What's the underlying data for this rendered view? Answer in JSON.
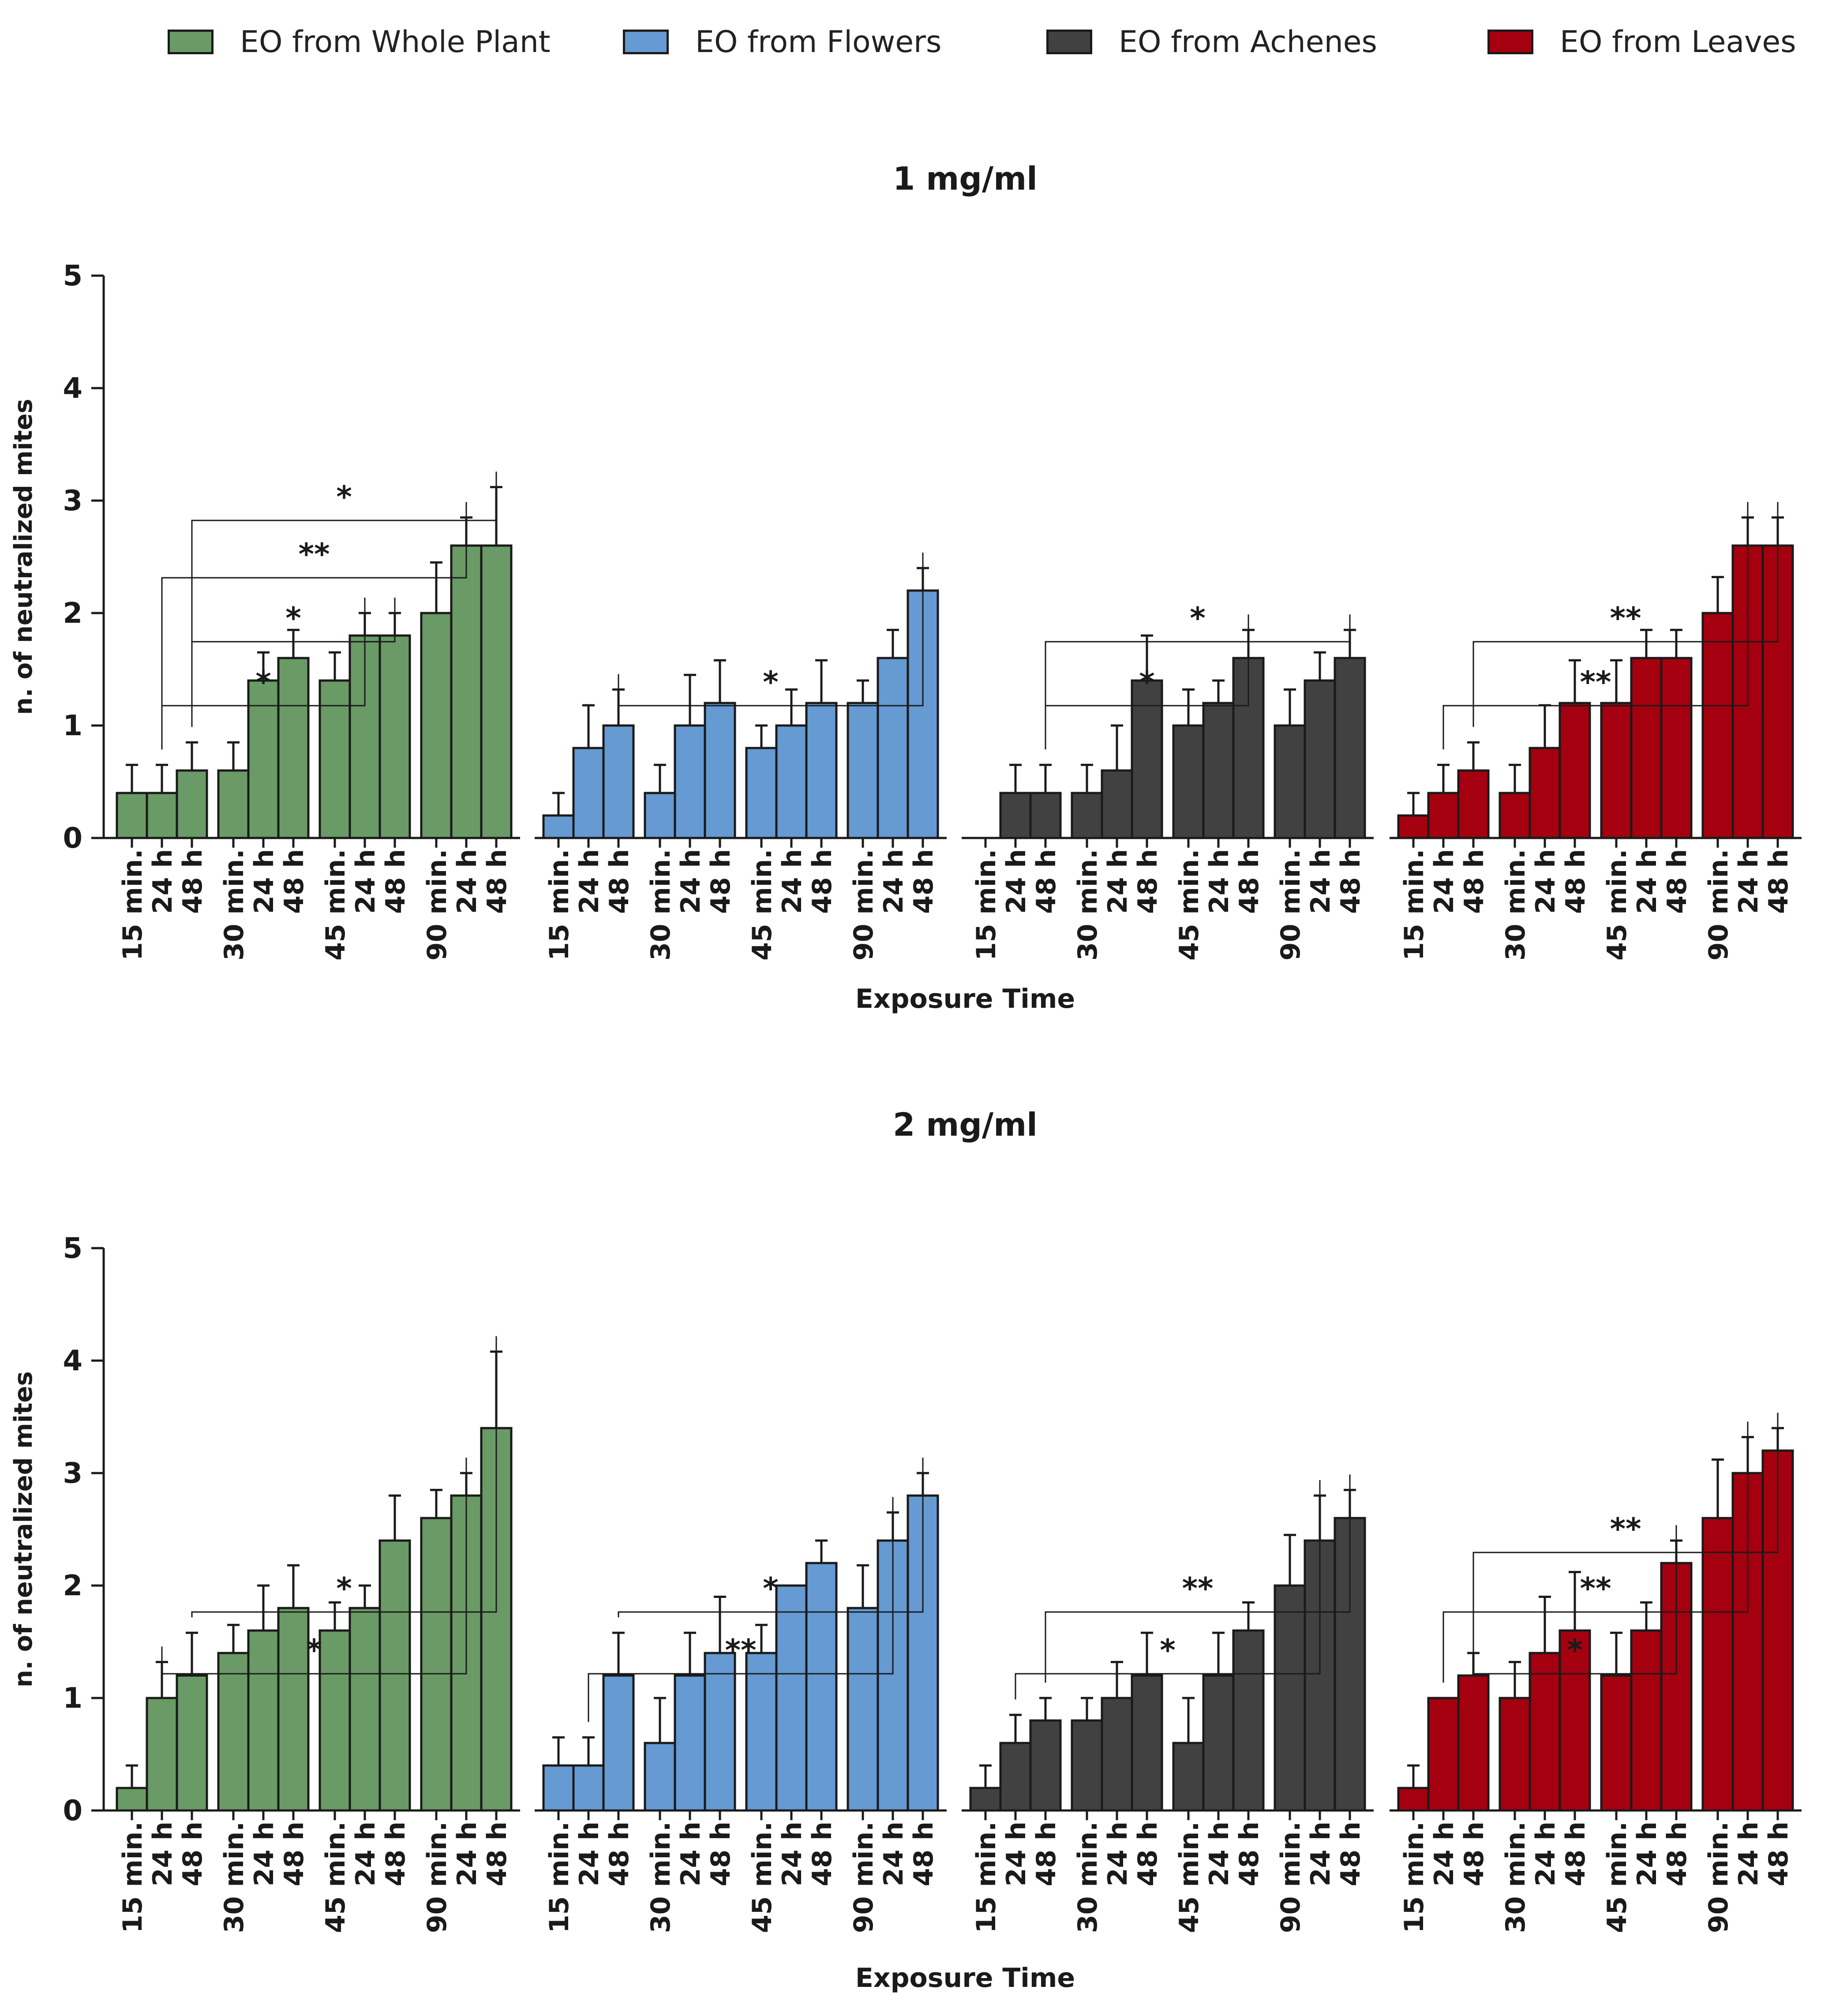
{
  "legend": [
    {
      "label": "EO from Whole Plant",
      "color": "#6a9a65"
    },
    {
      "label": "EO from Flowers",
      "color": "#659ad2"
    },
    {
      "label": "EO from Achenes",
      "color": "#414141"
    },
    {
      "label": "EO from Leaves",
      "color": "#a4000f"
    }
  ],
  "chart_data": [
    {
      "type": "bar",
      "title": "1 mg/ml",
      "xlabel": "Exposure Time",
      "ylabel": "n. of neutralized mites",
      "ylim": [
        0,
        5
      ],
      "yticks": [
        0,
        1,
        2,
        3,
        4,
        5
      ],
      "bar_labels": [
        "15 min.",
        "24 h",
        "48 h",
        "30 min.",
        "24 h",
        "48 h",
        "45 min.",
        "24 h",
        "48 h",
        "90 min.",
        "24 h",
        "48 h"
      ],
      "series": [
        {
          "name": "EO from Whole Plant",
          "values": [
            0.4,
            0.4,
            0.6,
            0.6,
            1.4,
            1.6,
            1.4,
            1.8,
            1.8,
            2.0,
            2.6,
            2.6
          ],
          "errors": [
            0.25,
            0.25,
            0.25,
            0.25,
            0.25,
            0.25,
            0.25,
            0.2,
            0.2,
            0.45,
            0.25,
            0.52
          ]
        },
        {
          "name": "EO from Flowers",
          "values": [
            0.2,
            0.8,
            1.0,
            0.4,
            1.0,
            1.2,
            0.8,
            1.0,
            1.2,
            1.2,
            1.6,
            2.2
          ],
          "errors": [
            0.2,
            0.38,
            0.32,
            0.25,
            0.45,
            0.38,
            0.2,
            0.32,
            0.38,
            0.2,
            0.25,
            0.2
          ]
        },
        {
          "name": "EO from Achenes",
          "values": [
            0.0,
            0.4,
            0.4,
            0.4,
            0.6,
            1.4,
            1.0,
            1.2,
            1.6,
            1.0,
            1.4,
            1.6
          ],
          "errors": [
            0,
            0.25,
            0.25,
            0.25,
            0.4,
            0.4,
            0.32,
            0.2,
            0.25,
            0.32,
            0.25,
            0.25
          ]
        },
        {
          "name": "EO from Leaves",
          "values": [
            0.2,
            0.4,
            0.6,
            0.4,
            0.8,
            1.2,
            1.2,
            1.6,
            1.6,
            2.0,
            2.6,
            2.6
          ],
          "errors": [
            0.2,
            0.25,
            0.25,
            0.25,
            0.38,
            0.38,
            0.38,
            0.25,
            0.25,
            0.32,
            0.25,
            0.25
          ]
        }
      ],
      "significance": [
        {
          "group": 0,
          "from": 1,
          "to": 7,
          "label": "*"
        },
        {
          "group": 0,
          "from": 2,
          "to": 8,
          "label": "*"
        },
        {
          "group": 0,
          "from": 1,
          "to": 10,
          "label": "**"
        },
        {
          "group": 0,
          "from": 2,
          "to": 11,
          "label": "*"
        },
        {
          "group": 1,
          "from": 2,
          "to": 11,
          "label": "*"
        },
        {
          "group": 2,
          "from": 2,
          "to": 8,
          "label": "*"
        },
        {
          "group": 2,
          "from": 2,
          "to": 11,
          "label": "*"
        },
        {
          "group": 3,
          "from": 1,
          "to": 10,
          "label": "**"
        },
        {
          "group": 3,
          "from": 2,
          "to": 11,
          "label": "**"
        }
      ]
    },
    {
      "type": "bar",
      "title": "2 mg/ml",
      "xlabel": "Exposure Time",
      "ylabel": "n. of neutralized mites",
      "ylim": [
        0,
        5
      ],
      "yticks": [
        0,
        1,
        2,
        3,
        4,
        5
      ],
      "bar_labels": [
        "15 min.",
        "24 h",
        "48 h",
        "30 min.",
        "24 h",
        "48 h",
        "45 min.",
        "24 h",
        "48 h",
        "90 min.",
        "24 h",
        "48 h"
      ],
      "series": [
        {
          "name": "EO from Whole Plant",
          "values": [
            0.2,
            1.0,
            1.2,
            1.4,
            1.6,
            1.8,
            1.6,
            1.8,
            2.4,
            2.6,
            2.8,
            3.4
          ],
          "errors": [
            0.2,
            0.32,
            0.38,
            0.25,
            0.4,
            0.38,
            0.25,
            0.2,
            0.4,
            0.25,
            0.2,
            0.68
          ]
        },
        {
          "name": "EO from Flowers",
          "values": [
            0.4,
            0.4,
            1.2,
            0.6,
            1.2,
            1.4,
            1.4,
            2.0,
            2.2,
            1.8,
            2.4,
            2.8
          ],
          "errors": [
            0.25,
            0.25,
            0.38,
            0.4,
            0.38,
            0.5,
            0.25,
            0,
            0.2,
            0.38,
            0.25,
            0.2
          ]
        },
        {
          "name": "EO from Achenes",
          "values": [
            0.2,
            0.6,
            0.8,
            0.8,
            1.0,
            1.2,
            0.6,
            1.2,
            1.6,
            2.0,
            2.4,
            2.6
          ],
          "errors": [
            0.2,
            0.25,
            0.2,
            0.2,
            0.32,
            0.38,
            0.4,
            0.38,
            0.25,
            0.45,
            0.4,
            0.25
          ]
        },
        {
          "name": "EO from Leaves",
          "values": [
            0.2,
            1.0,
            1.2,
            1.0,
            1.4,
            1.6,
            1.2,
            1.6,
            2.2,
            2.6,
            3.0,
            3.2
          ],
          "errors": [
            0.2,
            0,
            0.2,
            0.32,
            0.5,
            0.52,
            0.38,
            0.25,
            0.2,
            0.52,
            0.32,
            0.2
          ]
        }
      ],
      "significance": [
        {
          "group": 0,
          "from": 1,
          "to": 10,
          "label": "*"
        },
        {
          "group": 0,
          "from": 2,
          "to": 11,
          "label": "*"
        },
        {
          "group": 1,
          "from": 1,
          "to": 10,
          "label": "**"
        },
        {
          "group": 1,
          "from": 2,
          "to": 11,
          "label": "*"
        },
        {
          "group": 2,
          "from": 1,
          "to": 10,
          "label": "*"
        },
        {
          "group": 2,
          "from": 2,
          "to": 11,
          "label": "**"
        },
        {
          "group": 3,
          "from": 2,
          "to": 8,
          "label": "*"
        },
        {
          "group": 3,
          "from": 1,
          "to": 10,
          "label": "**"
        },
        {
          "group": 3,
          "from": 2,
          "to": 11,
          "label": "**"
        }
      ]
    }
  ]
}
